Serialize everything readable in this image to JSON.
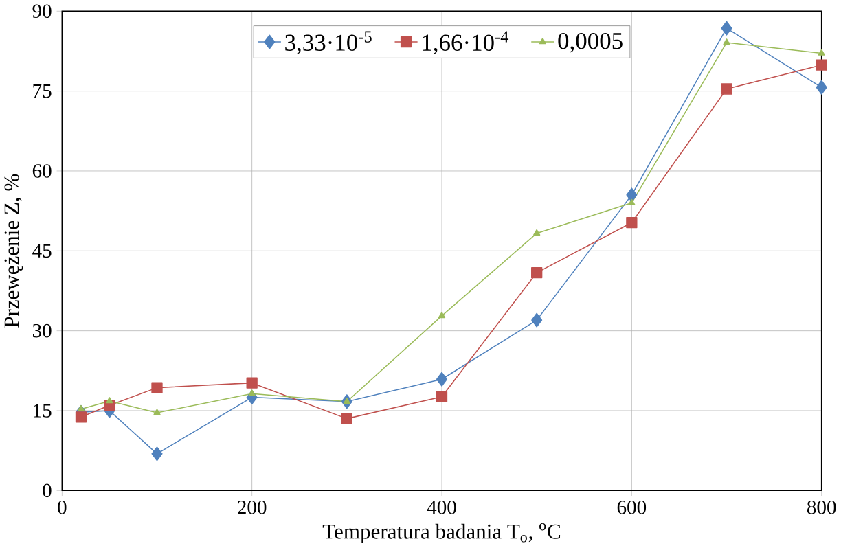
{
  "chart_data": {
    "type": "line",
    "xlabel": "Temperatura badania T$_{o}$, $^{o}$C",
    "ylabel": "Przewężenie Z, %",
    "x": [
      20,
      50,
      100,
      200,
      300,
      400,
      500,
      600,
      700,
      800
    ],
    "series": [
      {
        "name": "3,33·10$^{-5}$",
        "color": "#4f81bd",
        "marker": "diamond",
        "values": [
          14.7,
          15,
          6.9,
          17.5,
          16.7,
          20.9,
          32.0,
          55.5,
          86.8,
          75.7
        ]
      },
      {
        "name": "1,66·10$^{-4}$",
        "color": "#c0504d",
        "marker": "square",
        "values": [
          13.8,
          16,
          19.3,
          20.2,
          13.5,
          17.6,
          40.9,
          50.3,
          75.4,
          79.9
        ]
      },
      {
        "name": "0,0005",
        "color": "#9bbb59",
        "marker": "triangle",
        "values": [
          15.3,
          16.8,
          14.6,
          18.2,
          16.7,
          32.8,
          48.3,
          54,
          84.1,
          82.1
        ]
      }
    ],
    "xlim": [
      0,
      800
    ],
    "xticks": [
      0,
      200,
      400,
      600,
      800
    ],
    "ylim": [
      0,
      90
    ],
    "yticks": [
      0,
      15,
      30,
      45,
      60,
      75,
      90
    ],
    "grid": true,
    "legend": "top",
    "line_style": "solid"
  }
}
